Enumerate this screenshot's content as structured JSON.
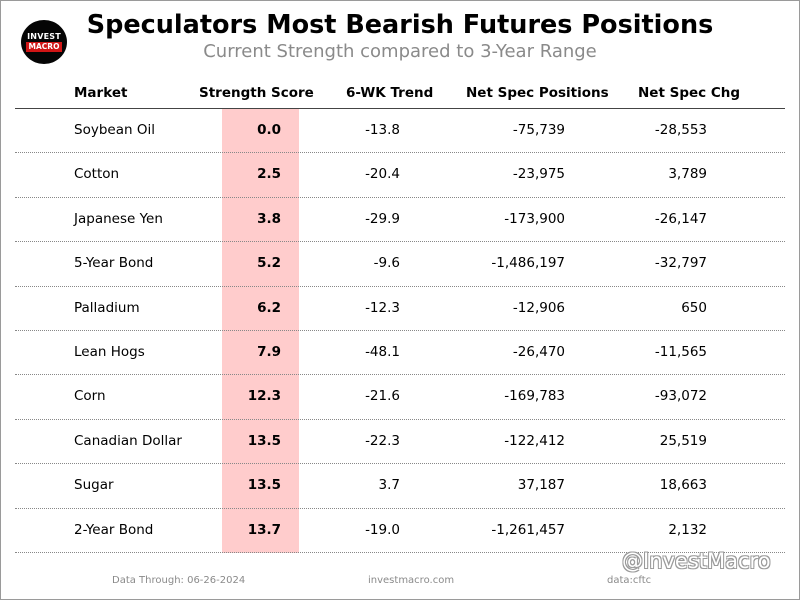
{
  "logo": {
    "line1": "INVEST",
    "line2": "MACRO"
  },
  "chart_data": {
    "type": "table",
    "title": "Speculators Most Bearish Futures Positions",
    "subtitle": "Current Strength compared to 3-Year Range",
    "columns": [
      "Market",
      "Strength Score",
      "6-WK Trend",
      "Net Spec Positions",
      "Net Spec Chg"
    ],
    "rows": [
      {
        "market": "Soybean Oil",
        "score": "0.0",
        "trend": "-13.8",
        "positions": "-75,739",
        "change": "-28,553"
      },
      {
        "market": "Cotton",
        "score": "2.5",
        "trend": "-20.4",
        "positions": "-23,975",
        "change": "3,789"
      },
      {
        "market": "Japanese Yen",
        "score": "3.8",
        "trend": "-29.9",
        "positions": "-173,900",
        "change": "-26,147"
      },
      {
        "market": "5-Year Bond",
        "score": "5.2",
        "trend": "-9.6",
        "positions": "-1,486,197",
        "change": "-32,797"
      },
      {
        "market": "Palladium",
        "score": "6.2",
        "trend": "-12.3",
        "positions": "-12,906",
        "change": "650"
      },
      {
        "market": "Lean Hogs",
        "score": "7.9",
        "trend": "-48.1",
        "positions": "-26,470",
        "change": "-11,565"
      },
      {
        "market": "Corn",
        "score": "12.3",
        "trend": "-21.6",
        "positions": "-169,783",
        "change": "-93,072"
      },
      {
        "market": "Canadian Dollar",
        "score": "13.5",
        "trend": "-22.3",
        "positions": "-122,412",
        "change": "25,519"
      },
      {
        "market": "Sugar",
        "score": "13.5",
        "trend": "3.7",
        "positions": "37,187",
        "change": "18,663"
      },
      {
        "market": "2-Year Bond",
        "score": "13.7",
        "trend": "-19.0",
        "positions": "-1,261,457",
        "change": "2,132"
      }
    ],
    "highlight_column": "Strength Score",
    "highlight_color": "#ffcccc"
  },
  "footer": {
    "date": "Data Through: 06-26-2024",
    "site": "investmacro.com",
    "source": "data:cftc"
  },
  "watermark": "@InvestMacro"
}
